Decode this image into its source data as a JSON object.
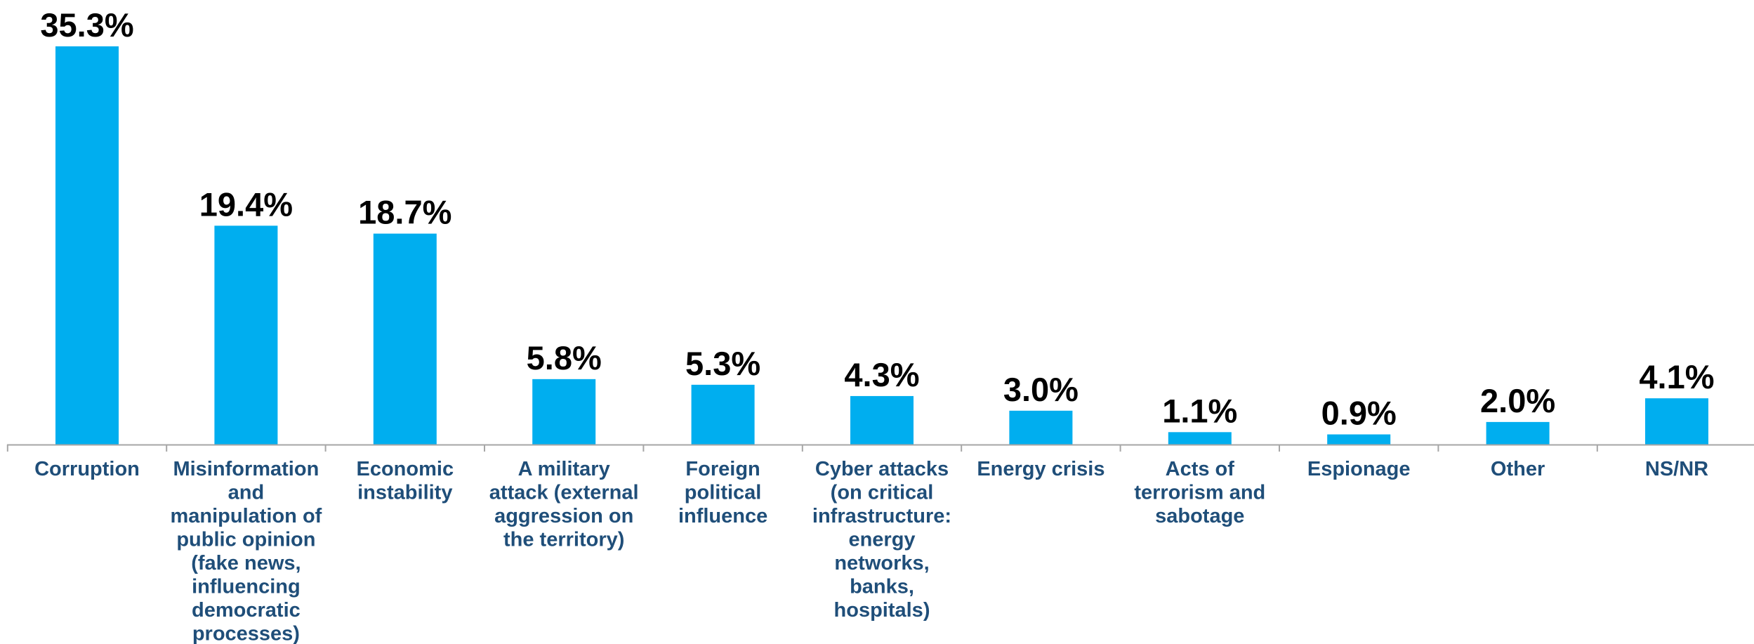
{
  "chart_data": {
    "type": "bar",
    "categories": [
      "Corruption",
      "Misinformation and manipulation of public opinion (fake news, influencing democratic processes)",
      "Economic instability",
      "A military attack (external aggression on the territory)",
      "Foreign political influence",
      "Cyber attacks (on critical infrastructure: energy networks, banks, hospitals)",
      "Energy crisis",
      "Acts of terrorism and sabotage",
      "Espionage",
      "Other",
      "NS/NR"
    ],
    "category_lines": [
      [
        "Corruption"
      ],
      [
        "Misinformation",
        "and",
        "manipulation of",
        "public opinion",
        "(fake news,",
        "influencing",
        "democratic",
        "processes)"
      ],
      [
        "Economic",
        "instability"
      ],
      [
        "A military",
        "attack (external",
        "aggression on",
        "the territory)"
      ],
      [
        "Foreign",
        "political",
        "influence"
      ],
      [
        "Cyber attacks",
        "(on critical",
        "infrastructure:",
        "energy",
        "networks,",
        "banks,",
        "hospitals)"
      ],
      [
        "Energy crisis"
      ],
      [
        "Acts of",
        "terrorism and",
        "sabotage"
      ],
      [
        "Espionage"
      ],
      [
        "Other"
      ],
      [
        "NS/NR"
      ]
    ],
    "values": [
      35.3,
      19.4,
      18.7,
      5.8,
      5.3,
      4.3,
      3.0,
      1.1,
      0.9,
      2.0,
      4.1
    ],
    "value_labels": [
      "35.3%",
      "19.4%",
      "18.7%",
      "5.8%",
      "5.3%",
      "4.3%",
      "3.0%",
      "1.1%",
      "0.9%",
      "2.0%",
      "4.1%"
    ],
    "title": "",
    "xlabel": "",
    "ylabel": "",
    "ylim": [
      0,
      35.3
    ],
    "grid": false,
    "legend": "none",
    "colors": {
      "bar": "#00AEEF",
      "category_text": "#1F4E79",
      "value_text": "#000000",
      "axis": "#A6A6A6"
    }
  }
}
